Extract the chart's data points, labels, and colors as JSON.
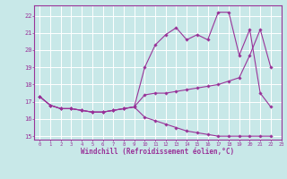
{
  "bg_color": "#c8e8e8",
  "grid_color": "#ffffff",
  "line_color": "#993399",
  "xlabel": "Windchill (Refroidissement éolien,°C)",
  "xlim": [
    -0.5,
    23
  ],
  "ylim": [
    14.8,
    22.6
  ],
  "yticks": [
    15,
    16,
    17,
    18,
    19,
    20,
    21,
    22
  ],
  "xticks": [
    0,
    1,
    2,
    3,
    4,
    5,
    6,
    7,
    8,
    9,
    10,
    11,
    12,
    13,
    14,
    15,
    16,
    17,
    18,
    19,
    20,
    21,
    22,
    23
  ],
  "series": [
    [
      17.3,
      16.8,
      16.6,
      16.6,
      16.5,
      16.4,
      16.4,
      16.5,
      16.6,
      16.7,
      19.0,
      20.3,
      20.9,
      21.3,
      20.6,
      20.9,
      20.6,
      22.2,
      22.2,
      19.7,
      21.2,
      17.5,
      16.7
    ],
    [
      17.3,
      16.8,
      16.6,
      16.6,
      16.5,
      16.4,
      16.4,
      16.5,
      16.6,
      16.7,
      17.4,
      17.5,
      17.5,
      17.6,
      17.7,
      17.8,
      17.9,
      18.0,
      18.2,
      18.4,
      19.7,
      21.2,
      19.0
    ],
    [
      17.3,
      16.8,
      16.6,
      16.6,
      16.5,
      16.4,
      16.4,
      16.5,
      16.6,
      16.7,
      16.1,
      15.9,
      15.7,
      15.5,
      15.3,
      15.2,
      15.1,
      15.0,
      15.0,
      15.0,
      15.0,
      15.0,
      15.0
    ]
  ]
}
